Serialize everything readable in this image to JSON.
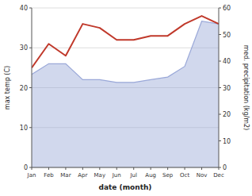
{
  "chart_data": {
    "type": "line",
    "x_label": "date (month)",
    "y_label": "max temp (C)",
    "y2_label": "med. precipitation (kg/m2)",
    "x": [
      1,
      2,
      3,
      4,
      5,
      6,
      7,
      8,
      9,
      10,
      11,
      12
    ],
    "xlim": [
      1,
      12
    ],
    "xticks": [
      {
        "value": 1,
        "label": "Jan"
      },
      {
        "value": 2,
        "label": "Feb"
      },
      {
        "value": 3,
        "label": "Mar"
      },
      {
        "value": 4,
        "label": "Apr"
      },
      {
        "value": 5,
        "label": "May"
      },
      {
        "value": 6,
        "label": "Jun"
      },
      {
        "value": 7,
        "label": "Jul"
      },
      {
        "value": 8,
        "label": "Aug"
      },
      {
        "value": 9,
        "label": "Sep"
      },
      {
        "value": 10,
        "label": "Oct"
      },
      {
        "value": 11,
        "label": "Nov"
      },
      {
        "value": 12,
        "label": "Dec"
      }
    ],
    "ylim": [
      0,
      40
    ],
    "yticks": [
      0,
      10,
      20,
      30,
      40
    ],
    "y2lim": [
      0,
      60
    ],
    "y2ticks": [
      0,
      10,
      20,
      30,
      40,
      50,
      60
    ],
    "grid": true,
    "series": [
      {
        "type": "area",
        "axis": "y2",
        "color": "#9aa8d8",
        "values": [
          35,
          39,
          39,
          33,
          33,
          32,
          32,
          33,
          34,
          38,
          55,
          54
        ]
      },
      {
        "type": "line",
        "axis": "y",
        "color": "#c0392b",
        "values": [
          25,
          31,
          28,
          36,
          35,
          32,
          32,
          33,
          33,
          36,
          38,
          36
        ]
      }
    ]
  }
}
